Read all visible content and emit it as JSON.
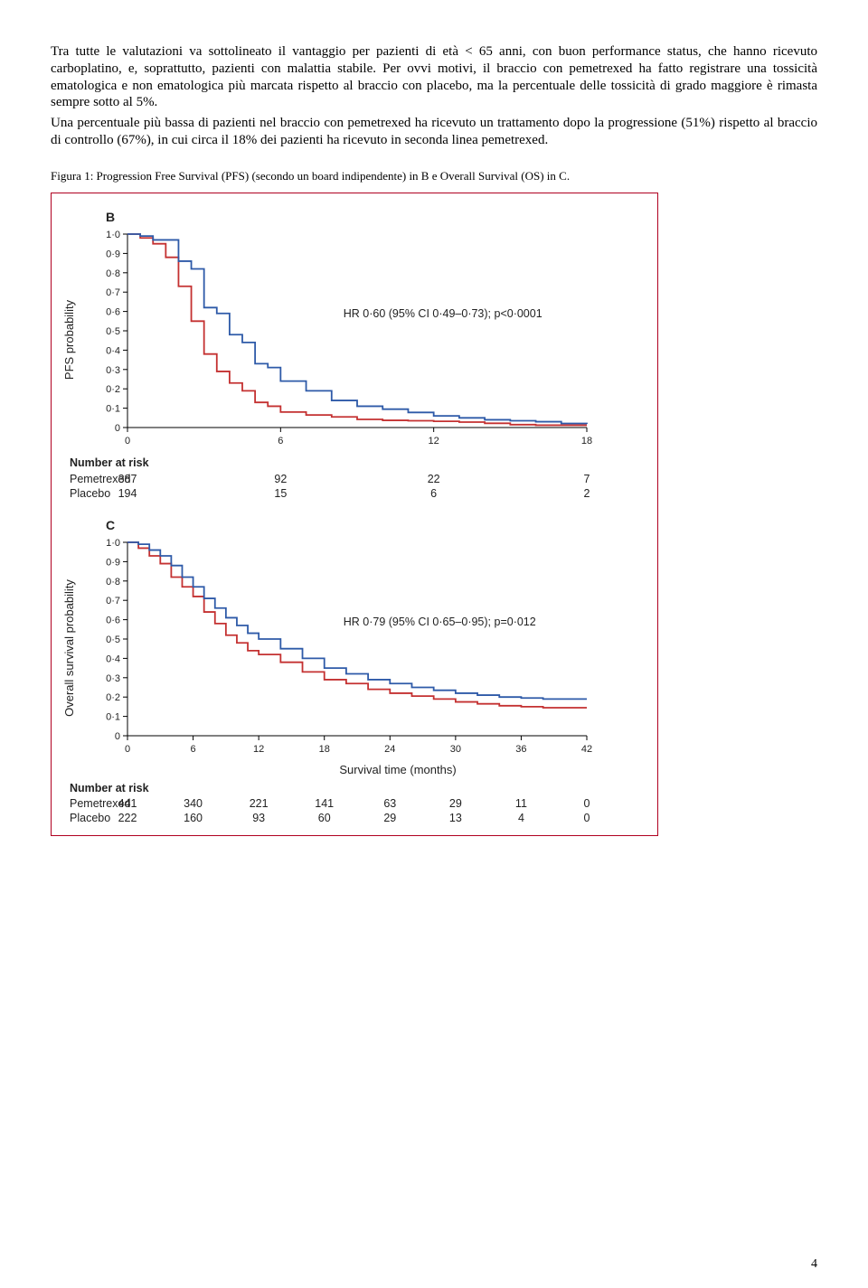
{
  "paragraphs": {
    "p1": "Tra tutte le valutazioni va sottolineato il vantaggio per pazienti di età < 65 anni, con buon performance status, che hanno ricevuto carboplatino, e, soprattutto, pazienti con malattia stabile. Per ovvi motivi, il braccio con pemetrexed ha fatto registrare una tossicità ematologica e non ematologica più marcata rispetto al braccio con placebo, ma la percentuale delle tossicità di grado maggiore è rimasta sempre sotto al 5%.",
    "p2": "Una percentuale più bassa di pazienti nel braccio con pemetrexed ha ricevuto un trattamento dopo la progressione (51%) rispetto al braccio di controllo (67%), in cui circa il 18% dei pazienti ha ricevuto in seconda linea pemetrexed."
  },
  "caption": "Figura 1: Progression Free Survival (PFS) (secondo un board indipendente) in B e Overall Survival (OS) in C.",
  "page_number": "4",
  "panels": {
    "B": {
      "label": "B",
      "ylabel": "PFS probability",
      "annotation": "HR 0·60 (95% CI 0·49–0·73); p<0·0001",
      "xmax": 18,
      "xtick_step": 6,
      "yticks": [
        0,
        0.1,
        0.2,
        0.3,
        0.4,
        0.5,
        0.6,
        0.7,
        0.8,
        0.9,
        1.0
      ],
      "colors": {
        "pemetrexed": "#2e5aa8",
        "placebo": "#c43131"
      },
      "pemetrexed": [
        [
          0,
          1.0
        ],
        [
          0.5,
          0.99
        ],
        [
          1,
          0.97
        ],
        [
          2,
          0.86
        ],
        [
          2.5,
          0.82
        ],
        [
          3,
          0.62
        ],
        [
          3.5,
          0.59
        ],
        [
          4,
          0.48
        ],
        [
          4.5,
          0.44
        ],
        [
          5,
          0.33
        ],
        [
          5.5,
          0.31
        ],
        [
          6,
          0.24
        ],
        [
          7,
          0.19
        ],
        [
          8,
          0.14
        ],
        [
          9,
          0.11
        ],
        [
          10,
          0.095
        ],
        [
          11,
          0.078
        ],
        [
          12,
          0.06
        ],
        [
          13,
          0.05
        ],
        [
          14,
          0.04
        ],
        [
          15,
          0.035
        ],
        [
          16,
          0.03
        ],
        [
          17,
          0.021
        ],
        [
          18,
          0.018
        ]
      ],
      "placebo": [
        [
          0,
          1.0
        ],
        [
          0.5,
          0.98
        ],
        [
          1,
          0.95
        ],
        [
          1.5,
          0.88
        ],
        [
          2,
          0.73
        ],
        [
          2.5,
          0.55
        ],
        [
          3,
          0.38
        ],
        [
          3.5,
          0.29
        ],
        [
          4,
          0.23
        ],
        [
          4.5,
          0.19
        ],
        [
          5,
          0.13
        ],
        [
          5.5,
          0.11
        ],
        [
          6,
          0.08
        ],
        [
          7,
          0.065
        ],
        [
          8,
          0.055
        ],
        [
          9,
          0.042
        ],
        [
          10,
          0.037
        ],
        [
          11,
          0.035
        ],
        [
          12,
          0.032
        ],
        [
          13,
          0.028
        ],
        [
          14,
          0.022
        ],
        [
          15,
          0.015
        ],
        [
          16,
          0.012
        ],
        [
          17,
          0.012
        ],
        [
          18,
          0.012
        ]
      ],
      "risk": {
        "title": "Number at risk",
        "rows": [
          {
            "label": "Pemetrexed",
            "values": [
              "387",
              "92",
              "22",
              "7"
            ]
          },
          {
            "label": "Placebo",
            "values": [
              "194",
              "15",
              "6",
              "2"
            ]
          }
        ]
      }
    },
    "C": {
      "label": "C",
      "ylabel": "Overall survival probability",
      "xlabel": "Survival time (months)",
      "annotation": "HR 0·79 (95% CI 0·65–0·95); p=0·012",
      "xmax": 42,
      "xtick_step": 6,
      "yticks": [
        0,
        0.1,
        0.2,
        0.3,
        0.4,
        0.5,
        0.6,
        0.7,
        0.8,
        0.9,
        1.0
      ],
      "colors": {
        "pemetrexed": "#2e5aa8",
        "placebo": "#c43131"
      },
      "pemetrexed": [
        [
          0,
          1.0
        ],
        [
          1,
          0.99
        ],
        [
          2,
          0.96
        ],
        [
          3,
          0.93
        ],
        [
          4,
          0.88
        ],
        [
          5,
          0.82
        ],
        [
          6,
          0.77
        ],
        [
          7,
          0.71
        ],
        [
          8,
          0.66
        ],
        [
          9,
          0.61
        ],
        [
          10,
          0.57
        ],
        [
          11,
          0.53
        ],
        [
          12,
          0.5
        ],
        [
          14,
          0.45
        ],
        [
          16,
          0.4
        ],
        [
          18,
          0.35
        ],
        [
          20,
          0.32
        ],
        [
          22,
          0.29
        ],
        [
          24,
          0.27
        ],
        [
          26,
          0.25
        ],
        [
          28,
          0.235
        ],
        [
          30,
          0.22
        ],
        [
          32,
          0.21
        ],
        [
          34,
          0.2
        ],
        [
          36,
          0.195
        ],
        [
          38,
          0.19
        ],
        [
          40,
          0.19
        ],
        [
          42,
          0.19
        ]
      ],
      "placebo": [
        [
          0,
          1.0
        ],
        [
          1,
          0.97
        ],
        [
          2,
          0.93
        ],
        [
          3,
          0.89
        ],
        [
          4,
          0.82
        ],
        [
          5,
          0.77
        ],
        [
          6,
          0.72
        ],
        [
          7,
          0.64
        ],
        [
          8,
          0.58
        ],
        [
          9,
          0.52
        ],
        [
          10,
          0.48
        ],
        [
          11,
          0.44
        ],
        [
          12,
          0.42
        ],
        [
          14,
          0.38
        ],
        [
          16,
          0.33
        ],
        [
          18,
          0.29
        ],
        [
          20,
          0.27
        ],
        [
          22,
          0.24
        ],
        [
          24,
          0.22
        ],
        [
          26,
          0.205
        ],
        [
          28,
          0.19
        ],
        [
          30,
          0.175
        ],
        [
          32,
          0.165
        ],
        [
          34,
          0.155
        ],
        [
          36,
          0.15
        ],
        [
          38,
          0.145
        ],
        [
          40,
          0.145
        ],
        [
          42,
          0.145
        ]
      ],
      "risk": {
        "title": "Number at risk",
        "rows": [
          {
            "label": "Pemetrexed",
            "values": [
              "441",
              "340",
              "221",
              "141",
              "63",
              "29",
              "11",
              "0"
            ]
          },
          {
            "label": "Placebo",
            "values": [
              "222",
              "160",
              "93",
              "60",
              "29",
              "13",
              "4",
              "0"
            ]
          }
        ]
      }
    }
  }
}
